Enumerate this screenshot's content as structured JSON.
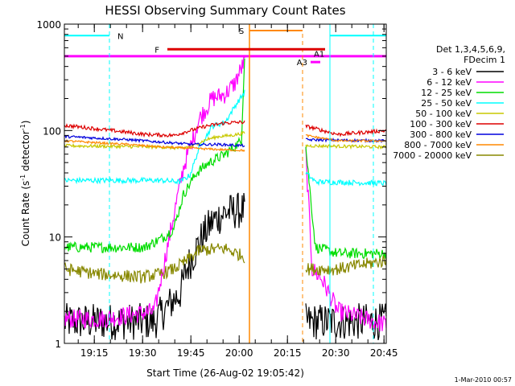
{
  "chart_data": {
    "type": "line",
    "title": "HESSI Observing Summary Count Rates",
    "xlabel": "Start Time (26-Aug-02 19:05:42)",
    "ylabel": "Count Rate (s⁻¹ detector⁻¹)",
    "ylabel_parts": {
      "main": "Count Rate (s",
      "sup": "-1",
      "mid": " detector",
      "sup2": "-1",
      "end": ")"
    },
    "yscale": "log",
    "ylim": [
      1,
      1000
    ],
    "xlim_minutes": [
      0,
      100
    ],
    "y_ticks": [
      {
        "v": 1,
        "label": "1"
      },
      {
        "v": 10,
        "label": "10"
      },
      {
        "v": 100,
        "label": "100"
      },
      {
        "v": 1000,
        "label": "1000"
      }
    ],
    "x_ticks": [
      {
        "t": 9.3,
        "label": "19:15"
      },
      {
        "t": 24.3,
        "label": "19:30"
      },
      {
        "t": 39.3,
        "label": "19:45"
      },
      {
        "t": 54.3,
        "label": "20:00"
      },
      {
        "t": 69.3,
        "label": "20:15"
      },
      {
        "t": 84.3,
        "label": "20:30"
      },
      {
        "t": 99.3,
        "label": "20:45"
      }
    ],
    "legend_header": [
      "Det 1,3,4,5,6,9,",
      "FDecim 1"
    ],
    "series": [
      {
        "name": "3 - 6 keV",
        "color": "#000000"
      },
      {
        "name": "6 - 12 keV",
        "color": "#ff00ff"
      },
      {
        "name": "12 - 25 keV",
        "color": "#00dd00"
      },
      {
        "name": "25 - 50 keV",
        "color": "#00ffff"
      },
      {
        "name": "50 - 100 keV",
        "color": "#c8c800"
      },
      {
        "name": "100 - 300 keV",
        "color": "#dd0000"
      },
      {
        "name": "300 - 800 keV",
        "color": "#0000dd"
      },
      {
        "name": "800 - 7000 keV",
        "color": "#ff8800"
      },
      {
        "name": "7000 - 20000 keV",
        "color": "#888800"
      }
    ],
    "annotations": {
      "N": {
        "label": "N",
        "color": "#00ffff"
      },
      "S": {
        "label": "S",
        "color": "#ff8800"
      },
      "F": {
        "label": "F",
        "color": "#dd0000"
      },
      "A1": {
        "label": "A1",
        "color": "#ff00ff"
      },
      "A3": {
        "label": "A3",
        "color": "#ff00ff"
      }
    },
    "footer_timestamp": "1-Mar-2010 00:57"
  }
}
